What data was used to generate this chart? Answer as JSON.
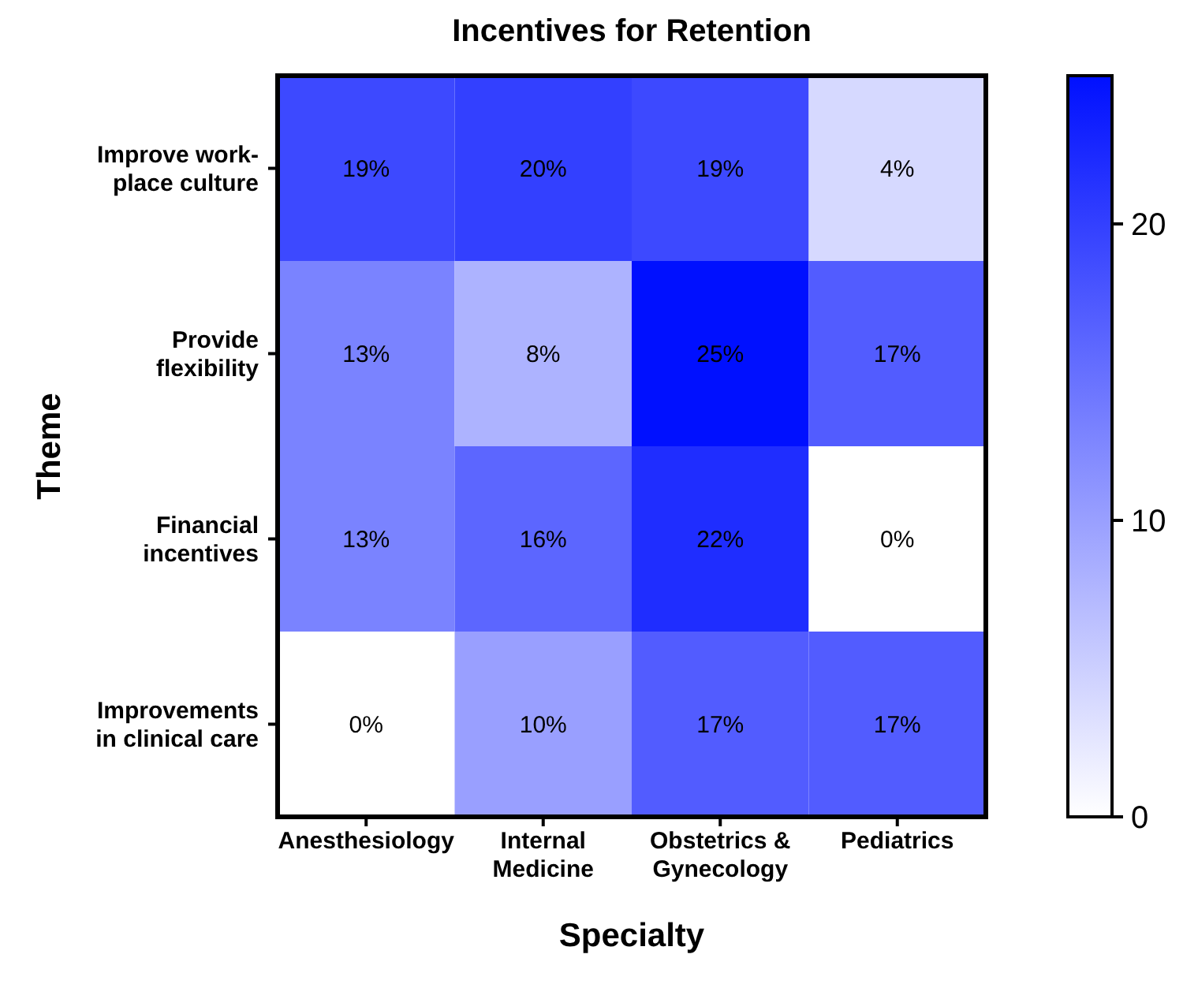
{
  "chart_data": {
    "type": "heatmap",
    "title": "Incentives for Retention",
    "xlabel": "Specialty",
    "ylabel": "Theme",
    "categories": [
      "Anesthesiology",
      "Internal\nMedicine",
      "Obstetrics &\nGynecology",
      "Pediatrics"
    ],
    "y_categories": [
      "Improve work-\nplace culture",
      "Provide\nflexibility",
      "Financial\nincentives",
      "Improvements\nin clinical care"
    ],
    "cells": [
      [
        19,
        20,
        19,
        4
      ],
      [
        13,
        8,
        25,
        17
      ],
      [
        13,
        16,
        22,
        0
      ],
      [
        0,
        10,
        17,
        17
      ]
    ],
    "cell_labels": [
      [
        "19%",
        "20%",
        "19%",
        "4%"
      ],
      [
        "13%",
        "8%",
        "25%",
        "17%"
      ],
      [
        "13%",
        "16%",
        "22%",
        "0%"
      ],
      [
        "0%",
        "10%",
        "17%",
        "17%"
      ]
    ],
    "clim": [
      0,
      25
    ],
    "cticks": [
      0,
      10,
      20
    ]
  }
}
